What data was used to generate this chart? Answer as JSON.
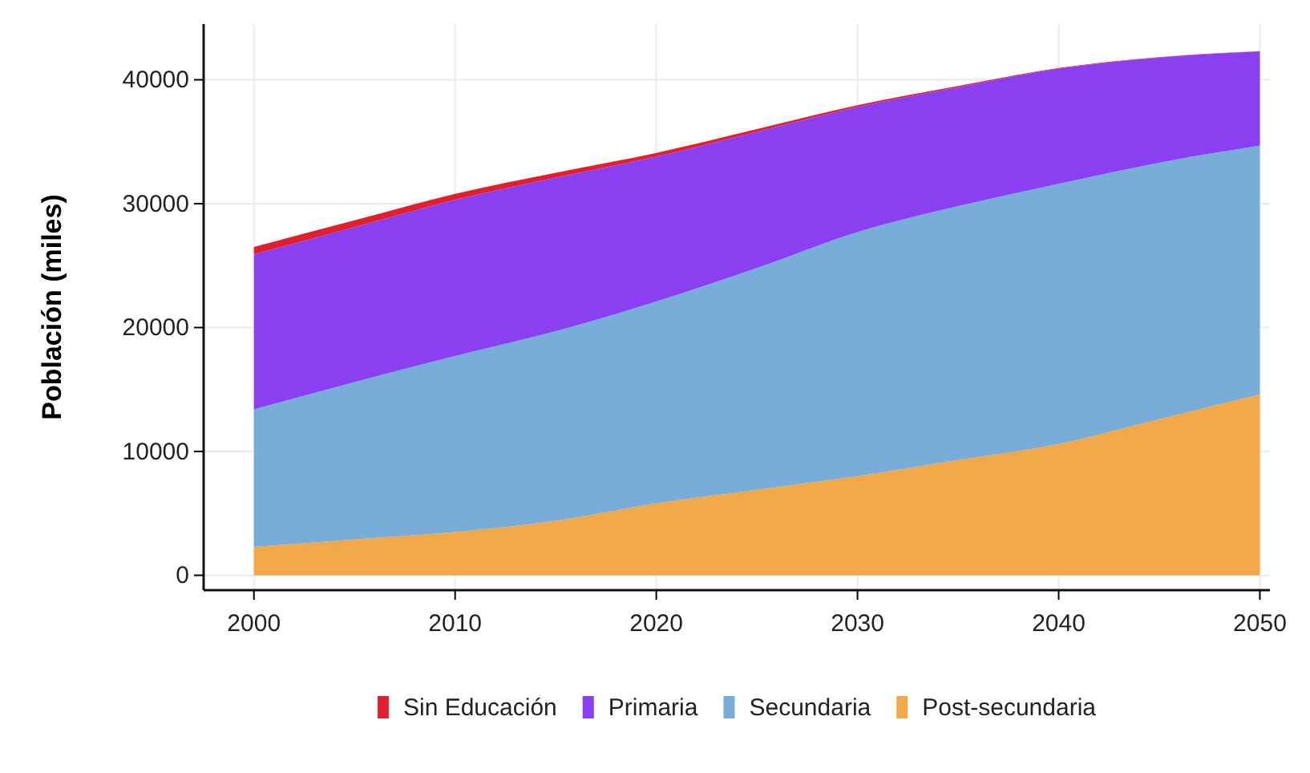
{
  "chart_data": {
    "type": "area",
    "stacked": true,
    "ylabel": "Población (miles)",
    "x": [
      2000,
      2005,
      2010,
      2015,
      2020,
      2025,
      2030,
      2035,
      2040,
      2045,
      2050
    ],
    "xlim": [
      1997.5,
      2050.5
    ],
    "xticks": [
      2000,
      2010,
      2020,
      2030,
      2040,
      2050
    ],
    "ylim": [
      -1200,
      44500
    ],
    "yticks": [
      0,
      10000,
      20000,
      30000,
      40000
    ],
    "grid": true,
    "legend": "bottom",
    "series": [
      {
        "name": "Post-secundaria",
        "color": "#f0a848",
        "values": [
          2300,
          2900,
          3500,
          4400,
          5800,
          6900,
          8000,
          9300,
          10600,
          12600,
          14600
        ]
      },
      {
        "name": "Secundaria",
        "color": "#78acd9",
        "values": [
          11100,
          12700,
          14200,
          15300,
          16300,
          17900,
          19700,
          20500,
          21000,
          20700,
          20100
        ]
      },
      {
        "name": "Primaria",
        "color": "#8a3ff0",
        "values": [
          12500,
          12500,
          12600,
          12400,
          11700,
          11000,
          10100,
          9600,
          9300,
          8500,
          7600
        ]
      },
      {
        "name": "Sin Educación",
        "color": "#e0202e",
        "values": [
          600,
          550,
          500,
          400,
          300,
          220,
          150,
          100,
          50,
          30,
          20
        ]
      }
    ]
  }
}
